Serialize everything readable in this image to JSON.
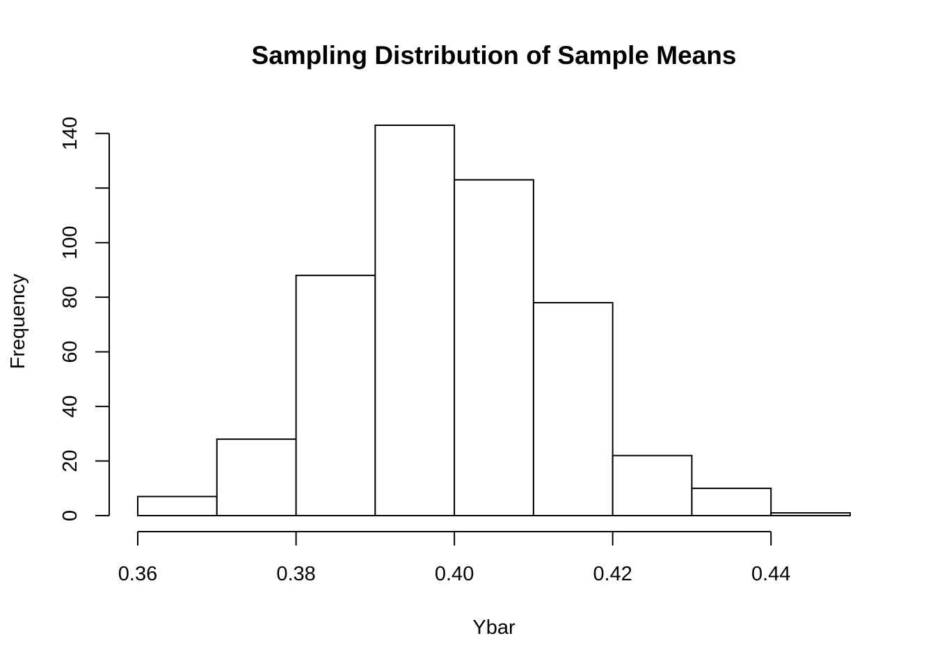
{
  "chart_data": {
    "type": "bar",
    "title": "Sampling Distribution of Sample Means",
    "xlabel": "Ybar",
    "ylabel": "Frequency",
    "bin_edges": [
      0.36,
      0.37,
      0.38,
      0.39,
      0.4,
      0.41,
      0.42,
      0.43,
      0.44,
      0.45
    ],
    "values": [
      7,
      28,
      88,
      143,
      123,
      78,
      22,
      10,
      1
    ],
    "xlim": [
      0.36,
      0.45
    ],
    "ylim": [
      0,
      143
    ],
    "x_ticks": [
      0.36,
      0.38,
      0.4,
      0.42,
      0.44
    ],
    "x_tick_labels": [
      "0.36",
      "0.38",
      "0.40",
      "0.42",
      "0.44"
    ],
    "y_ticks": [
      0,
      20,
      40,
      60,
      80,
      100,
      120,
      140
    ],
    "y_tick_labels": [
      "0",
      "20",
      "40",
      "60",
      "80",
      "100",
      "",
      "140"
    ],
    "grid": false,
    "legend": "none",
    "colors": {
      "bar_fill": "#ffffff",
      "bar_stroke": "#000000"
    }
  }
}
